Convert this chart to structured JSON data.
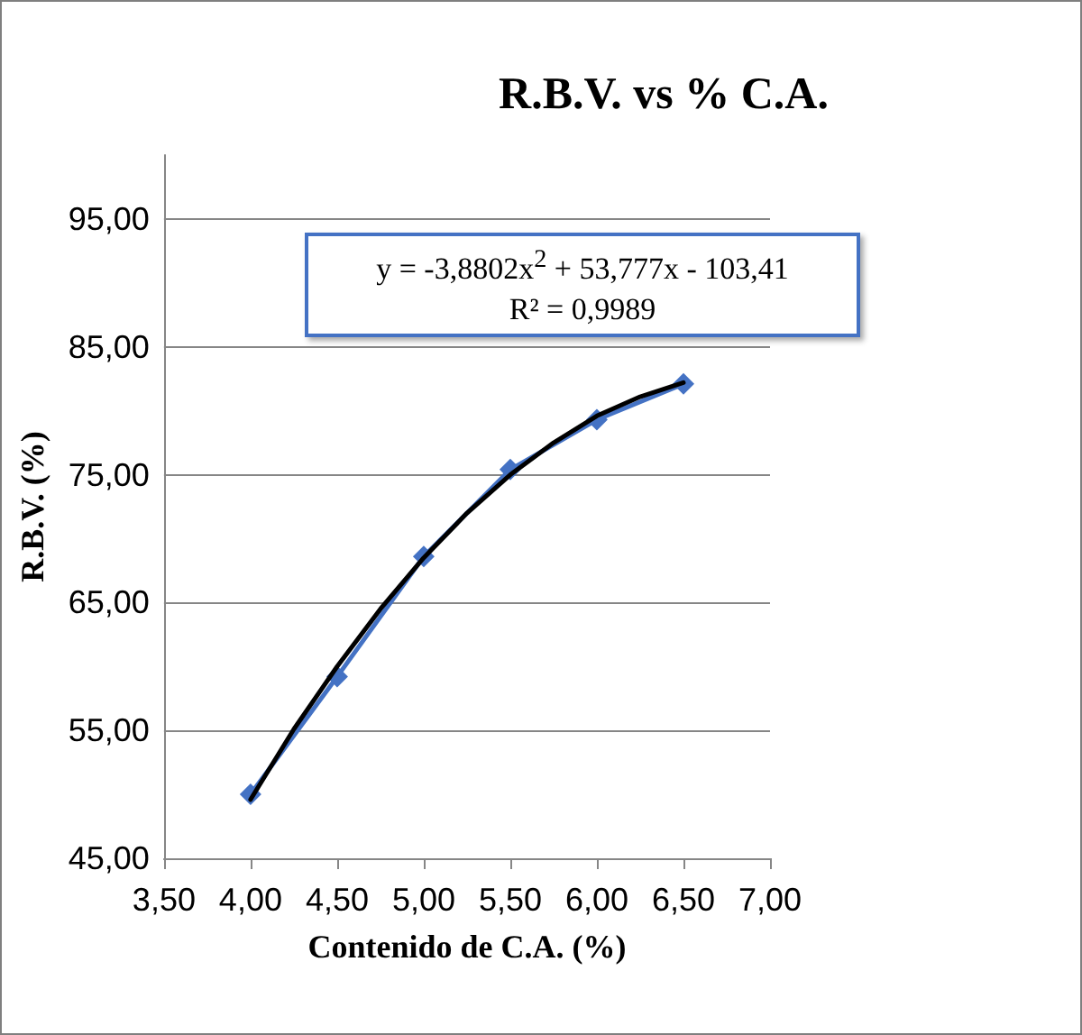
{
  "chart_data": {
    "type": "line",
    "title": "R.B.V. vs % C.A.",
    "xlabel": "Contenido de C.A. (%)",
    "ylabel": "R.B.V. (%)",
    "annotations": [
      "y = -3,8802x$^{2}$ + 53,777x - 103,41",
      "R² = 0,9989"
    ],
    "series": [
      {
        "color": "#4472c4",
        "marker": "diamond",
        "x": [
          4.0,
          4.5,
          5.0,
          5.5,
          6.0,
          6.5
        ],
        "values": [
          50.0,
          59.2,
          68.6,
          75.4,
          79.3,
          82.1
        ]
      },
      {
        "color": "#000000",
        "marker": "none",
        "x": [
          4.0,
          4.25,
          4.5,
          4.75,
          5.0,
          5.25,
          5.5,
          5.75,
          6.0,
          6.25,
          6.5
        ],
        "values": [
          49.6,
          55.1,
          60.0,
          64.5,
          68.5,
          72.0,
          75.0,
          77.5,
          79.6,
          81.1,
          82.2
        ]
      }
    ],
    "xlim": [
      3.5,
      7.0
    ],
    "xticks": [
      {
        "value": 3.5,
        "label": "3,50"
      },
      {
        "value": 4.0,
        "label": "4,00"
      },
      {
        "value": 4.5,
        "label": "4,50"
      },
      {
        "value": 5.0,
        "label": "5,00"
      },
      {
        "value": 5.5,
        "label": "5,50"
      },
      {
        "value": 6.0,
        "label": "6,00"
      },
      {
        "value": 6.5,
        "label": "6,50"
      },
      {
        "value": 7.0,
        "label": "7,00"
      }
    ],
    "ylim": [
      45,
      100
    ],
    "yticks": [
      {
        "value": 45,
        "label": "45,00"
      },
      {
        "value": 55,
        "label": "55,00"
      },
      {
        "value": 65,
        "label": "65,00"
      },
      {
        "value": 75,
        "label": "75,00"
      },
      {
        "value": 85,
        "label": "85,00"
      },
      {
        "value": 95,
        "label": "95,00"
      }
    ],
    "grid": "y"
  }
}
